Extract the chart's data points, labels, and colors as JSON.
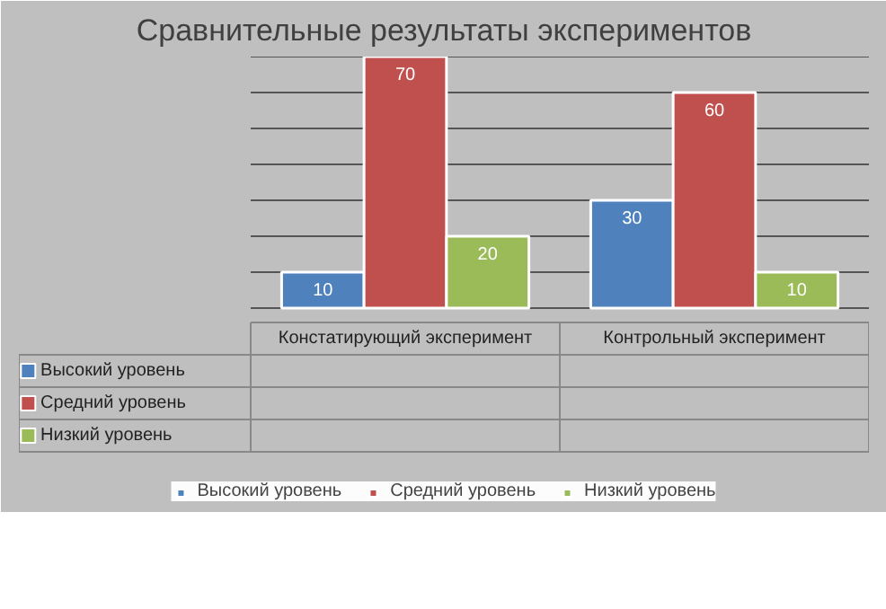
{
  "chart_data": {
    "type": "bar",
    "title": "Сравнительные результаты экспериментов",
    "categories": [
      "Констатирующий эксперимент",
      "Контрольный эксперимент"
    ],
    "series": [
      {
        "name": "Высокий уровень",
        "color": "#4f81bd",
        "values": [
          10,
          30
        ],
        "value_labels": [
          "10",
          "30"
        ]
      },
      {
        "name": "Средний уровень",
        "color": "#c0504d",
        "values": [
          70,
          60
        ],
        "value_labels": [
          "70",
          "60"
        ]
      },
      {
        "name": "Низкий уровень",
        "color": "#9bbb59",
        "values": [
          20,
          10
        ],
        "value_labels": [
          "20",
          "10"
        ]
      }
    ],
    "ylim": [
      0,
      70
    ],
    "yticks": [
      {
        "value": 0,
        "label": null
      },
      {
        "value": 10,
        "label": null
      },
      {
        "value": 20,
        "label": null
      },
      {
        "value": 30,
        "label": null
      },
      {
        "value": 40,
        "label": null
      },
      {
        "value": 50,
        "label": null
      },
      {
        "value": 60,
        "label": null
      },
      {
        "value": 70,
        "label": null
      }
    ],
    "grid": "y",
    "legend": "bottom"
  }
}
